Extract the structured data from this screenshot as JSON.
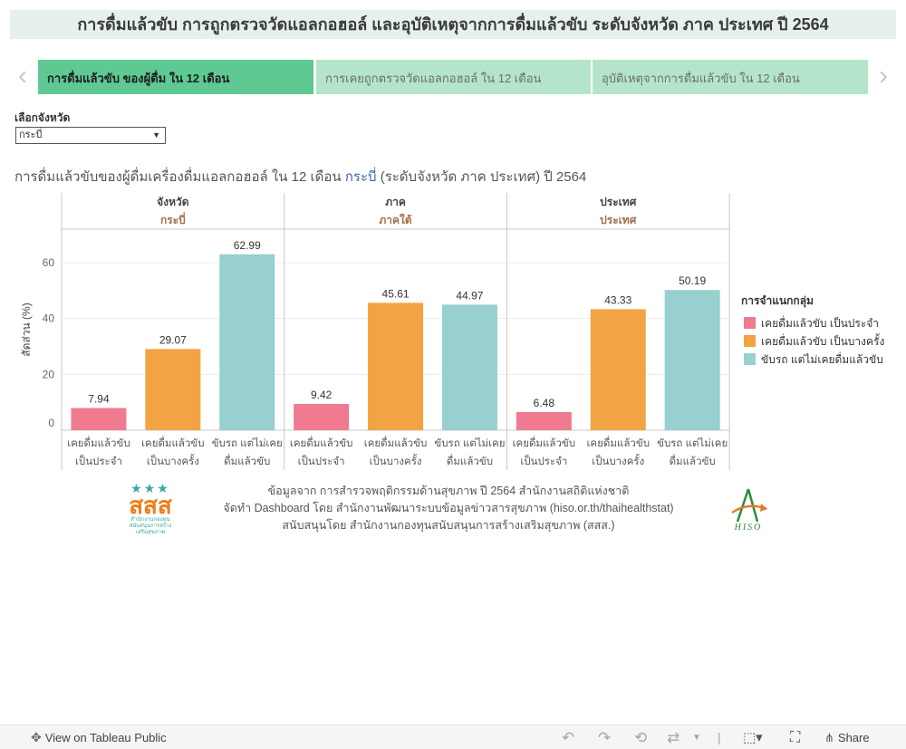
{
  "page_title": "การดื่มแล้วขับ การถูกตรวจวัดแอลกอฮอล์ และอุบัติเหตุจากการดื่มแล้วขับ ระดับจังหวัด ภาค ประเทศ ปี 2564",
  "tabs": [
    {
      "label": "การดื่มแล้วขับ ของผู้ดื่ม ใน 12 เดือน",
      "active": true
    },
    {
      "label": "การเคยถูกตรวจวัดแอลกอฮอล์ ใน 12 เดือน",
      "active": false
    },
    {
      "label": "อุบัติเหตุจากการดื่มแล้วขับ ใน 12 เดือน",
      "active": false
    }
  ],
  "nav": {
    "prev": "‹",
    "next": "›"
  },
  "filter": {
    "label": "เลือกจังหวัด",
    "selected": "กระบี่"
  },
  "sheet_title": {
    "prefix": "การดื่มแล้วขับของผู้ดื่มเครื่องดื่มแอลกอฮอล์ ใน 12 เดือน ",
    "highlight": "กระบี่",
    "suffix": " (ระดับจังหวัด ภาค ประเทศ) ปี 2564"
  },
  "chart_data": {
    "type": "bar",
    "ylabel": "สัดส่วน (%)",
    "ylim": [
      0,
      72
    ],
    "yticks": [
      0,
      20,
      40,
      60
    ],
    "grid": true,
    "categories": [
      "เคยดื่มแล้วขับ เป็นประจำ",
      "เคยดื่มแล้วขับ เป็นบางครั้ง",
      "ขับรถ แต่ไม่เคยดื่มแล้วขับ"
    ],
    "category_lines": [
      [
        "เคยดื่มแล้วขับ",
        "เป็นประจำ"
      ],
      [
        "เคยดื่มแล้วขับ",
        "เป็นบางครั้ง"
      ],
      [
        "ขับรถ แต่ไม่เคย",
        "ดื่มแล้วขับ"
      ]
    ],
    "colors": [
      "#f07a8f",
      "#f2a444",
      "#98cfcf"
    ],
    "panels": [
      {
        "header": "จังหวัด",
        "sub": "กระบี่",
        "values": [
          7.94,
          29.07,
          62.99
        ]
      },
      {
        "header": "ภาค",
        "sub": "ภาคใต้",
        "values": [
          9.42,
          45.61,
          44.97
        ]
      },
      {
        "header": "ประเทศ",
        "sub": "ประเทศ",
        "values": [
          6.48,
          43.33,
          50.19
        ]
      }
    ],
    "legend": {
      "title": "การจำแนกกลุ่ม",
      "placement": "right",
      "items": [
        "เคยดื่มแล้วขับ เป็นประจำ",
        "เคยดื่มแล้วขับ เป็นบางครั้ง",
        "ขับรถ แต่ไม่เคยดื่มแล้วขับ"
      ]
    }
  },
  "credits": [
    "ข้อมูลจาก การสำรวจพฤติกรรมด้านสุขภาพ ปี 2564 สำนักงานสถิติแห่งชาติ",
    "จัดทำ Dashboard โดย สำนักงานพัฒนาระบบข้อมูลข่าวสารสุขภาพ (hiso.or.th/thaihealthstat)",
    "สนับสนุนโดย สำนักงานกองทุนสนับสนุนการสร้างเสริมสุขภาพ (สสส.)"
  ],
  "logos": {
    "left_text": "สสส",
    "left_sub": "สำนักงานกองทุนสนับสนุนการสร้างเสริมสุขภาพ",
    "right_text": "HISO"
  },
  "toolbar": {
    "view_label": "View on Tableau Public",
    "share_label": "Share"
  }
}
